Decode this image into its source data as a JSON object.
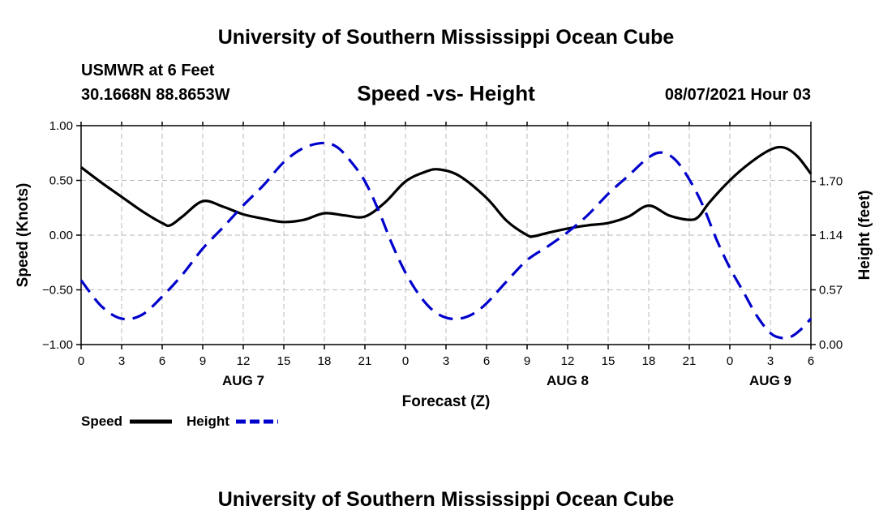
{
  "page": {
    "top_title": "University of Southern Mississippi Ocean Cube",
    "bottom_title": "University of Southern Mississippi Ocean Cube",
    "station_line1": "USMWR at 6 Feet",
    "station_line2": "30.1668N  88.8653W",
    "date_label": "08/07/2021 Hour 03"
  },
  "chart_data": {
    "type": "line",
    "title": "Speed -vs- Height",
    "xlabel": "Forecast (Z)",
    "ylabel_left": "Speed (Knots)",
    "ylabel_right": "Height (feet)",
    "x_unit": "forecast hours",
    "x_range": [
      0,
      54
    ],
    "x_ticks": [
      0,
      3,
      6,
      9,
      12,
      15,
      18,
      21,
      24,
      27,
      30,
      33,
      36,
      39,
      42,
      45,
      48,
      51,
      54
    ],
    "x_tick_labels": [
      "0",
      "3",
      "6",
      "9",
      "12",
      "15",
      "18",
      "21",
      "0",
      "3",
      "6",
      "9",
      "12",
      "15",
      "18",
      "21",
      "0",
      "3",
      "6"
    ],
    "date_labels": [
      {
        "x": 12,
        "label": "AUG 7"
      },
      {
        "x": 36,
        "label": "AUG 8"
      },
      {
        "x": 51,
        "label": "AUG 9"
      }
    ],
    "ylim_left": [
      -1.0,
      1.0
    ],
    "yticks_left": [
      1.0,
      0.5,
      0.0,
      -0.5,
      -1.0
    ],
    "ytick_labels_left": [
      "1.00",
      "0.50",
      "0.00",
      "−0.50",
      "−1.00"
    ],
    "ylim_right": [
      0.0,
      2.28
    ],
    "yticks_right": [
      1.7,
      1.14,
      0.57,
      0.0
    ],
    "ytick_labels_right": [
      "1.70",
      "1.14",
      "0.57",
      "0.00"
    ],
    "grid": true,
    "legend": [
      {
        "name": "Speed",
        "color": "#000000",
        "style": "solid"
      },
      {
        "name": "Height",
        "color": "#0000cc",
        "style": "dashed"
      }
    ],
    "series": [
      {
        "name": "Speed",
        "axis": "left",
        "color": "#000000",
        "dash": false,
        "x": [
          0,
          1.5,
          3,
          4.5,
          6,
          6.6,
          7.5,
          9,
          10.5,
          12,
          13.5,
          15,
          16.5,
          18,
          19.5,
          21,
          22.5,
          24,
          25.5,
          26.5,
          28,
          30,
          31.5,
          33,
          33.5,
          34.5,
          36,
          37.5,
          39,
          40.5,
          42,
          43.5,
          45,
          45.7,
          46.5,
          48,
          49.5,
          51,
          52,
          53,
          54
        ],
        "y": [
          0.62,
          0.48,
          0.35,
          0.22,
          0.11,
          0.09,
          0.17,
          0.31,
          0.26,
          0.19,
          0.15,
          0.12,
          0.14,
          0.2,
          0.18,
          0.17,
          0.3,
          0.49,
          0.58,
          0.6,
          0.54,
          0.34,
          0.13,
          0.0,
          -0.01,
          0.02,
          0.06,
          0.09,
          0.11,
          0.17,
          0.27,
          0.18,
          0.14,
          0.17,
          0.3,
          0.5,
          0.66,
          0.78,
          0.8,
          0.72,
          0.56
        ]
      },
      {
        "name": "Height",
        "axis": "right",
        "color": "#0000cc",
        "dash": true,
        "x": [
          0,
          1.5,
          3,
          4.5,
          6,
          7.5,
          9,
          10.5,
          12,
          13.5,
          15,
          16.5,
          18,
          19,
          20,
          21,
          22,
          23,
          24,
          25,
          26,
          27,
          28,
          29,
          30,
          31.5,
          33,
          34.5,
          36,
          37.5,
          39,
          40.5,
          42,
          43,
          44,
          45,
          46,
          47,
          48,
          49,
          50,
          51,
          51.8,
          52.5,
          53.2,
          54
        ],
        "y": [
          0.67,
          0.4,
          0.27,
          0.31,
          0.5,
          0.73,
          1.0,
          1.22,
          1.45,
          1.66,
          1.9,
          2.05,
          2.1,
          2.05,
          1.9,
          1.7,
          1.4,
          1.05,
          0.75,
          0.52,
          0.36,
          0.28,
          0.27,
          0.32,
          0.43,
          0.66,
          0.88,
          1.02,
          1.17,
          1.35,
          1.57,
          1.76,
          1.95,
          2.0,
          1.92,
          1.72,
          1.45,
          1.1,
          0.8,
          0.55,
          0.3,
          0.12,
          0.07,
          0.08,
          0.15,
          0.27
        ]
      }
    ]
  }
}
